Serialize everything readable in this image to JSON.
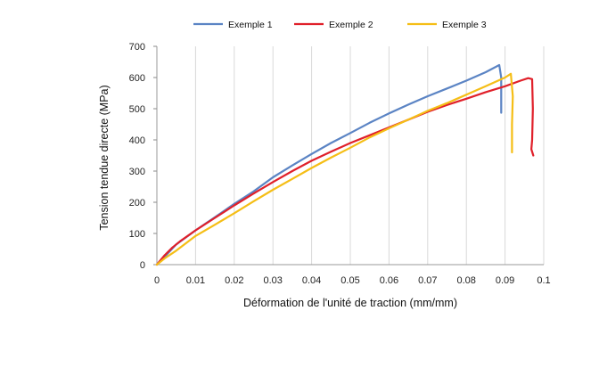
{
  "chart_data": {
    "type": "line",
    "title": "",
    "xlabel": "Déformation de l'unité de traction (mm/mm)",
    "ylabel": "Tension tendue directe (MPa)",
    "xlim": [
      0,
      0.1
    ],
    "ylim": [
      0,
      700
    ],
    "x_ticks": [
      "0",
      "0.01",
      "0.02",
      "0.03",
      "0.04",
      "0.05",
      "0.06",
      "0.07",
      "0.08",
      "0.09",
      "0.1"
    ],
    "y_ticks": [
      "0",
      "100",
      "200",
      "300",
      "400",
      "500",
      "600",
      "700"
    ],
    "grid": "vertical",
    "legend_position": "top-center",
    "series": [
      {
        "name": "Exemple 1",
        "color": "#5B84C4",
        "x": [
          0,
          0.002,
          0.005,
          0.01,
          0.015,
          0.02,
          0.025,
          0.03,
          0.035,
          0.04,
          0.045,
          0.05,
          0.055,
          0.06,
          0.065,
          0.07,
          0.075,
          0.08,
          0.085,
          0.0885,
          0.089,
          0.089
        ],
        "y": [
          0,
          25,
          65,
          110,
          152,
          195,
          235,
          280,
          318,
          355,
          390,
          422,
          455,
          485,
          513,
          540,
          565,
          590,
          617,
          640,
          600,
          487
        ]
      },
      {
        "name": "Exemple 2",
        "color": "#E0202A",
        "x": [
          0,
          0.002,
          0.004,
          0.006,
          0.01,
          0.015,
          0.02,
          0.025,
          0.03,
          0.035,
          0.04,
          0.045,
          0.05,
          0.055,
          0.06,
          0.065,
          0.07,
          0.075,
          0.08,
          0.085,
          0.09,
          0.094,
          0.096,
          0.097,
          0.0972,
          0.097,
          0.0968,
          0.0973
        ],
        "y": [
          0,
          30,
          55,
          75,
          110,
          150,
          190,
          228,
          265,
          300,
          333,
          362,
          390,
          415,
          440,
          465,
          490,
          512,
          532,
          553,
          572,
          590,
          598,
          595,
          500,
          400,
          370,
          350
        ]
      },
      {
        "name": "Exemple 3",
        "color": "#F5BE16",
        "x": [
          0,
          0.002,
          0.005,
          0.01,
          0.015,
          0.02,
          0.025,
          0.03,
          0.035,
          0.04,
          0.045,
          0.05,
          0.055,
          0.06,
          0.065,
          0.07,
          0.075,
          0.08,
          0.085,
          0.09,
          0.0915,
          0.092,
          0.0918,
          0.0918
        ],
        "y": [
          0,
          20,
          45,
          92,
          128,
          165,
          203,
          240,
          275,
          310,
          343,
          375,
          408,
          437,
          465,
          493,
          518,
          545,
          572,
          600,
          612,
          540,
          450,
          360
        ]
      }
    ]
  }
}
